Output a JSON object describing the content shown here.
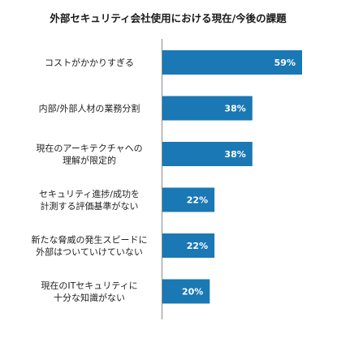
{
  "chart_data": {
    "type": "bar",
    "orientation": "horizontal",
    "title": "外部セキュリティ会社使用における現在/今後の課題",
    "categories": [
      [
        "コストがかかりすぎる"
      ],
      [
        "内部/外部人材の業務分割"
      ],
      [
        "現在のアーキテクチャへの",
        "理解が限定的"
      ],
      [
        "セキュリティ進捗/成功を",
        "計測する評価基準がない"
      ],
      [
        "新たな脅威の発生スピードに",
        "外部はついていけていない"
      ],
      [
        "現在のITセキュリティに",
        "十分な知識がない"
      ]
    ],
    "values": [
      59,
      38,
      38,
      22,
      22,
      20
    ],
    "value_labels": [
      "59%",
      "38%",
      "38%",
      "22%",
      "22%",
      "20%"
    ],
    "unit": "%",
    "xlim": [
      0,
      60
    ],
    "colors": {
      "bar": "#1a78b4",
      "axis": "#8c8c8c",
      "label": "#ffffff"
    },
    "grid": false,
    "legend": "none"
  }
}
